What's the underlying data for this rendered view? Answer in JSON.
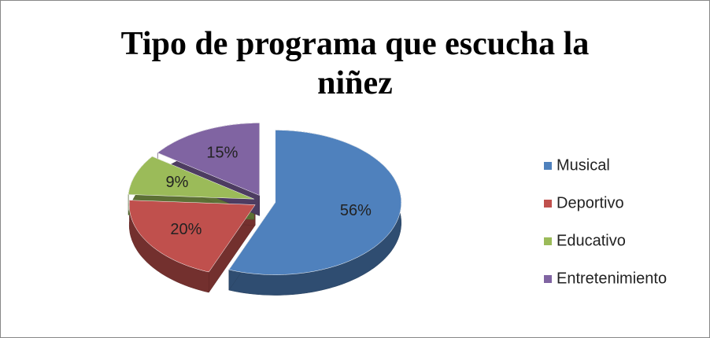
{
  "chart_data": {
    "type": "pie",
    "title": "Tipo de programa que escucha la niñez",
    "categories": [
      "Musical",
      "Deportivo",
      "Educativo",
      "Entretenimiento"
    ],
    "values": [
      56,
      20,
      9,
      15
    ],
    "value_labels": [
      "56%",
      "20%",
      "9%",
      "15%"
    ],
    "colors": [
      "#4f81bd",
      "#c0504d",
      "#9bbb59",
      "#8064a2"
    ],
    "legend": "right"
  }
}
